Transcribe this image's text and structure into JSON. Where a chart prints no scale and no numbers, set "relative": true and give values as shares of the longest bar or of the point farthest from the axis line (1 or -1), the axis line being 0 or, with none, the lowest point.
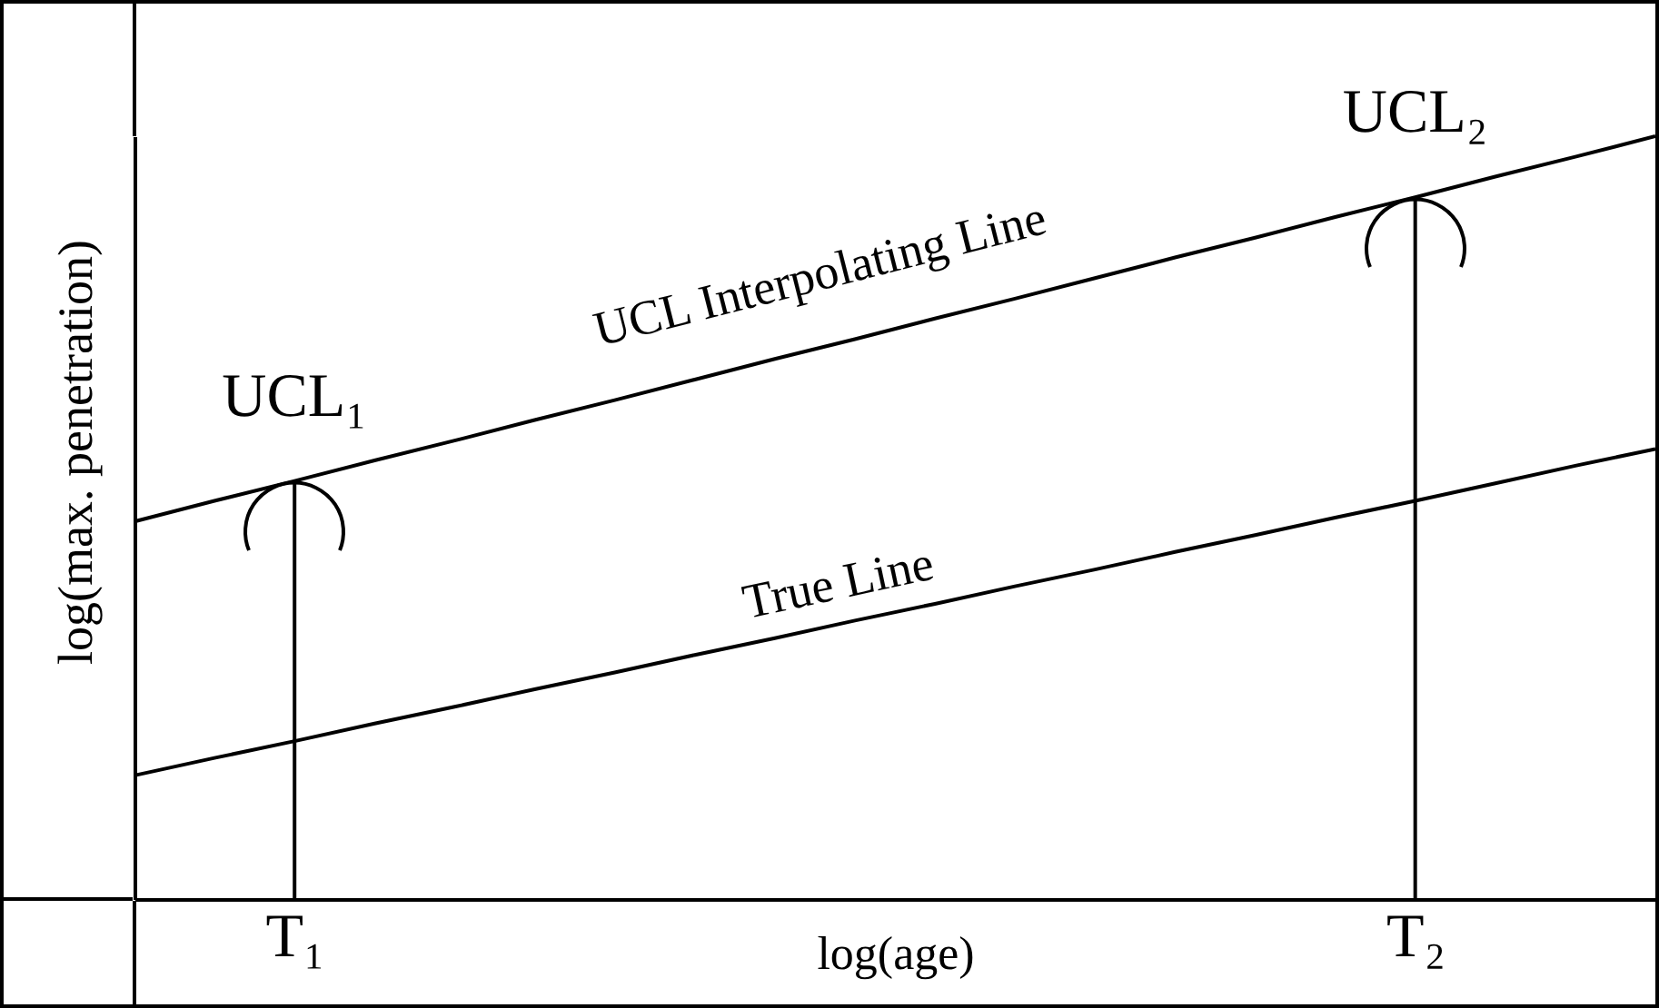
{
  "chart_data": {
    "type": "line",
    "relative": true,
    "xlabel": "log(age)",
    "ylabel": "log(max. penetration)",
    "categories": [
      null,
      null,
      "T₁",
      null,
      null,
      null,
      null,
      null,
      null,
      null,
      null,
      null,
      null,
      null,
      null,
      null,
      "T₂",
      null,
      null,
      null
    ],
    "series": [
      {
        "name": "UCL Interpolating Line",
        "color": "#000000",
        "values": [
          0.495,
          0.522,
          0.548,
          0.575,
          0.601,
          0.628,
          0.654,
          0.681,
          0.708,
          0.734,
          0.761,
          0.787,
          0.814,
          0.841,
          0.867,
          0.894,
          0.92,
          0.947,
          0.973,
          1.0
        ]
      },
      {
        "name": "True Line",
        "color": "#000000",
        "values": [
          0.162,
          0.185,
          0.207,
          0.23,
          0.252,
          0.275,
          0.297,
          0.32,
          0.342,
          0.365,
          0.387,
          0.41,
          0.432,
          0.455,
          0.477,
          0.5,
          0.522,
          0.545,
          0.568,
          0.59
        ]
      },
      {
        "type": "bar",
        "color": "#000000",
        "x": [
          "T₁",
          "T₂"
        ],
        "values": [
          0.548,
          0.92
        ]
      }
    ],
    "annotations": [
      {
        "text": "UCL₁",
        "x": "T₁",
        "y": 0.548
      },
      {
        "text": "UCL₂",
        "x": "T₂",
        "y": 0.92
      }
    ]
  }
}
